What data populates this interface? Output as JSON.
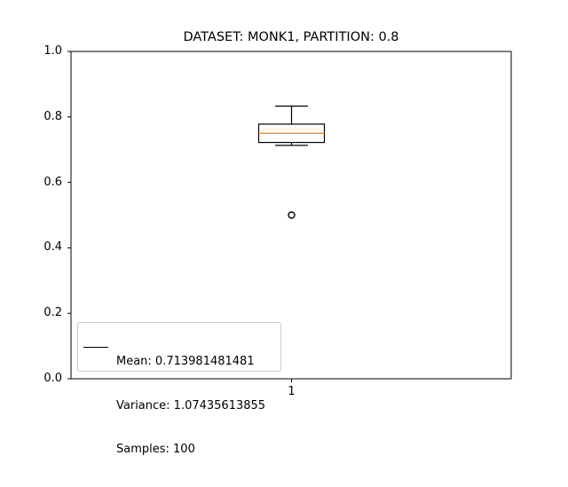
{
  "chart_data": {
    "type": "box",
    "title": "DATASET: MONK1, PARTITION: 0.8",
    "xlabel": "",
    "ylabel": "",
    "ylim": [
      0.0,
      1.0
    ],
    "yticks": [
      "0.0",
      "0.2",
      "0.4",
      "0.6",
      "0.8",
      "1.0"
    ],
    "categories": [
      "1"
    ],
    "boxes": [
      {
        "category": "1",
        "whisker_low": 0.713,
        "q1": 0.722,
        "median": 0.75,
        "q3": 0.778,
        "whisker_high": 0.833,
        "outliers": [
          0.5
        ]
      }
    ],
    "legend": {
      "placement": "lower left",
      "lines": [
        "Mean: 0.713981481481",
        "Variance: 1.07435613855",
        "Samples: 100"
      ]
    },
    "colors": {
      "box": "#000000",
      "median": "#ff7f0e",
      "outlier": "#000000"
    },
    "grid": false
  }
}
